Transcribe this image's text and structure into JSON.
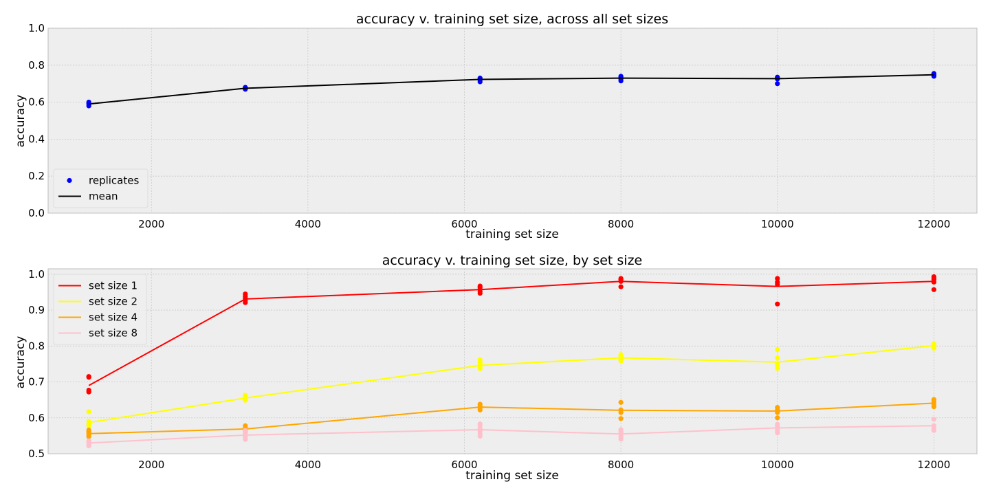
{
  "chart_data": [
    {
      "type": "line",
      "title": "accuracy v. training set size, across all set sizes",
      "xlabel": "training set size",
      "ylabel": "accuracy",
      "xlim": [
        680,
        12550
      ],
      "ylim": [
        0.0,
        1.0
      ],
      "xticks": [
        2000,
        4000,
        6000,
        8000,
        10000,
        12000
      ],
      "yticks": [
        "0.0",
        "0.2",
        "0.4",
        "0.6",
        "0.8",
        "1.0"
      ],
      "grid": true,
      "legend_position": "lower-left",
      "x": [
        1200,
        3200,
        6200,
        8000,
        10000,
        12000
      ],
      "series": [
        {
          "name": "replicates",
          "kind": "scatter",
          "color": "#0000ff",
          "points": [
            [
              1200,
              0.58
            ],
            [
              1200,
              0.59
            ],
            [
              1200,
              0.595
            ],
            [
              1200,
              0.6
            ],
            [
              3200,
              0.67
            ],
            [
              3200,
              0.675
            ],
            [
              3200,
              0.68
            ],
            [
              6200,
              0.71
            ],
            [
              6200,
              0.72
            ],
            [
              6200,
              0.725
            ],
            [
              6200,
              0.73
            ],
            [
              8000,
              0.715
            ],
            [
              8000,
              0.725
            ],
            [
              8000,
              0.735
            ],
            [
              8000,
              0.74
            ],
            [
              10000,
              0.7
            ],
            [
              10000,
              0.725
            ],
            [
              10000,
              0.73
            ],
            [
              10000,
              0.735
            ],
            [
              12000,
              0.74
            ],
            [
              12000,
              0.745
            ],
            [
              12000,
              0.75
            ],
            [
              12000,
              0.755
            ]
          ]
        },
        {
          "name": "mean",
          "kind": "line",
          "color": "#000000",
          "values": [
            0.59,
            0.675,
            0.723,
            0.73,
            0.727,
            0.748
          ]
        }
      ]
    },
    {
      "type": "line",
      "title": "accuracy v. training set size, by set size",
      "xlabel": "training set size",
      "ylabel": "accuracy",
      "xlim": [
        680,
        12550
      ],
      "ylim": [
        0.5,
        1.015
      ],
      "xticks": [
        2000,
        4000,
        6000,
        8000,
        10000,
        12000
      ],
      "yticks": [
        "0.5",
        "0.6",
        "0.7",
        "0.8",
        "0.9",
        "1.0"
      ],
      "grid": true,
      "legend_position": "upper-left",
      "x": [
        1200,
        3200,
        6200,
        8000,
        10000,
        12000
      ],
      "series": [
        {
          "name": "set size 1",
          "color": "#ff0000",
          "values": [
            0.69,
            0.931,
            0.957,
            0.98,
            0.966,
            0.98
          ],
          "points": [
            [
              1200,
              0.672
            ],
            [
              1200,
              0.677
            ],
            [
              1200,
              0.713
            ],
            [
              1200,
              0.715
            ],
            [
              3200,
              0.921
            ],
            [
              3200,
              0.926
            ],
            [
              3200,
              0.932
            ],
            [
              3200,
              0.938
            ],
            [
              3200,
              0.945
            ],
            [
              6200,
              0.947
            ],
            [
              6200,
              0.952
            ],
            [
              6200,
              0.958
            ],
            [
              6200,
              0.963
            ],
            [
              6200,
              0.967
            ],
            [
              8000,
              0.965
            ],
            [
              8000,
              0.98
            ],
            [
              8000,
              0.985
            ],
            [
              8000,
              0.988
            ],
            [
              10000,
              0.917
            ],
            [
              10000,
              0.972
            ],
            [
              10000,
              0.978
            ],
            [
              10000,
              0.988
            ],
            [
              12000,
              0.957
            ],
            [
              12000,
              0.978
            ],
            [
              12000,
              0.985
            ],
            [
              12000,
              0.99
            ],
            [
              12000,
              0.993
            ]
          ]
        },
        {
          "name": "set size 2",
          "color": "#ffff00",
          "values": [
            0.587,
            0.655,
            0.746,
            0.767,
            0.755,
            0.801
          ],
          "points": [
            [
              1200,
              0.578
            ],
            [
              1200,
              0.583
            ],
            [
              1200,
              0.59
            ],
            [
              1200,
              0.617
            ],
            [
              3200,
              0.649
            ],
            [
              3200,
              0.653
            ],
            [
              3200,
              0.659
            ],
            [
              3200,
              0.663
            ],
            [
              6200,
              0.737
            ],
            [
              6200,
              0.742
            ],
            [
              6200,
              0.749
            ],
            [
              6200,
              0.755
            ],
            [
              6200,
              0.762
            ],
            [
              8000,
              0.758
            ],
            [
              8000,
              0.763
            ],
            [
              8000,
              0.77
            ],
            [
              8000,
              0.776
            ],
            [
              10000,
              0.738
            ],
            [
              10000,
              0.743
            ],
            [
              10000,
              0.75
            ],
            [
              10000,
              0.766
            ],
            [
              10000,
              0.79
            ],
            [
              12000,
              0.794
            ],
            [
              12000,
              0.8
            ],
            [
              12000,
              0.806
            ]
          ]
        },
        {
          "name": "set size 4",
          "color": "#ffa500",
          "values": [
            0.556,
            0.569,
            0.63,
            0.621,
            0.619,
            0.641
          ],
          "points": [
            [
              1200,
              0.548
            ],
            [
              1200,
              0.553
            ],
            [
              1200,
              0.558
            ],
            [
              1200,
              0.563
            ],
            [
              1200,
              0.566
            ],
            [
              3200,
              0.561
            ],
            [
              3200,
              0.566
            ],
            [
              3200,
              0.572
            ],
            [
              3200,
              0.578
            ],
            [
              6200,
              0.622
            ],
            [
              6200,
              0.627
            ],
            [
              6200,
              0.633
            ],
            [
              6200,
              0.638
            ],
            [
              8000,
              0.598
            ],
            [
              8000,
              0.615
            ],
            [
              8000,
              0.622
            ],
            [
              8000,
              0.643
            ],
            [
              10000,
              0.6
            ],
            [
              10000,
              0.615
            ],
            [
              10000,
              0.622
            ],
            [
              10000,
              0.629
            ],
            [
              12000,
              0.631
            ],
            [
              12000,
              0.638
            ],
            [
              12000,
              0.645
            ],
            [
              12000,
              0.651
            ]
          ]
        },
        {
          "name": "set size 8",
          "color": "#ffc0cb",
          "values": [
            0.53,
            0.552,
            0.567,
            0.555,
            0.572,
            0.578
          ],
          "points": [
            [
              1200,
              0.522
            ],
            [
              1200,
              0.527
            ],
            [
              1200,
              0.532
            ],
            [
              1200,
              0.536
            ],
            [
              3200,
              0.54
            ],
            [
              3200,
              0.546
            ],
            [
              3200,
              0.552
            ],
            [
              3200,
              0.558
            ],
            [
              3200,
              0.565
            ],
            [
              6200,
              0.549
            ],
            [
              6200,
              0.556
            ],
            [
              6200,
              0.563
            ],
            [
              6200,
              0.57
            ],
            [
              6200,
              0.578
            ],
            [
              6200,
              0.583
            ],
            [
              8000,
              0.541
            ],
            [
              8000,
              0.548
            ],
            [
              8000,
              0.556
            ],
            [
              8000,
              0.562
            ],
            [
              8000,
              0.567
            ],
            [
              10000,
              0.558
            ],
            [
              10000,
              0.565
            ],
            [
              10000,
              0.572
            ],
            [
              10000,
              0.578
            ],
            [
              10000,
              0.582
            ],
            [
              12000,
              0.565
            ],
            [
              12000,
              0.571
            ],
            [
              12000,
              0.578
            ],
            [
              12000,
              0.596
            ]
          ]
        }
      ]
    }
  ]
}
